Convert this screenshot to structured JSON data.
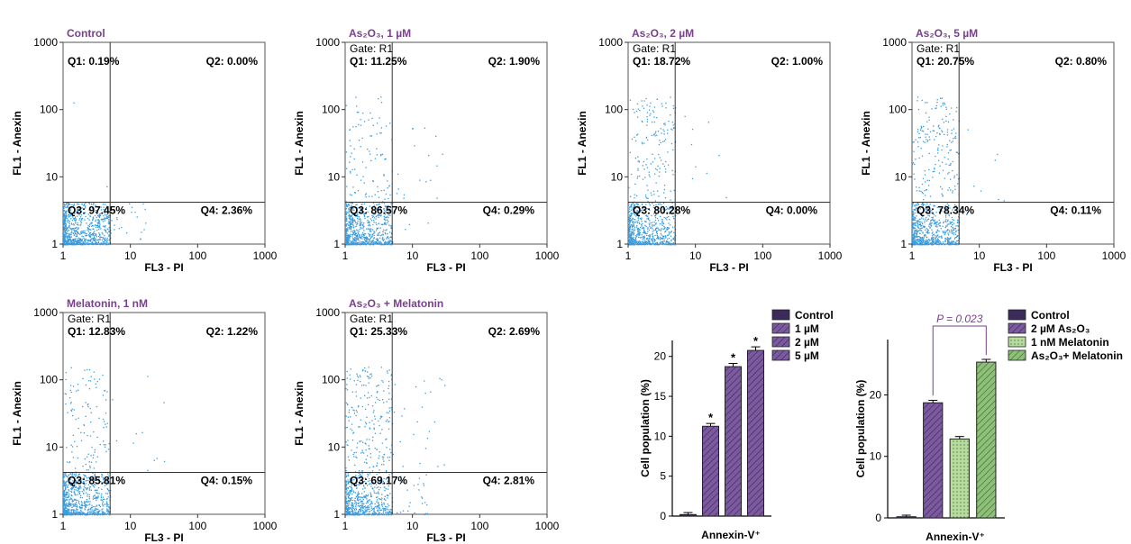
{
  "colors": {
    "title": "#7a3f8e",
    "dots": "#3a9bdc",
    "control_bar": "#3b2b5a",
    "arsenic_bar": "#7b5a9e",
    "melatonin_bar": "#b8dca0",
    "combo_bar": "#8fc07a"
  },
  "flow_axes": {
    "xlabel": "FL3 - PI",
    "ylabel": "FL1 - Anexin",
    "x_ticks": [
      "1",
      "10",
      "100",
      "1000"
    ],
    "y_ticks": [
      "1000",
      "100",
      "10",
      "1"
    ],
    "gate_x": 5,
    "gate_y": 4.2
  },
  "flow_plots": [
    {
      "title": "Control",
      "gate": "",
      "q1": "Q1: 0.19%",
      "q2": "Q2: 0.00%",
      "q3": "Q3: 97.45%",
      "q4": "Q4: 2.36%",
      "density": [
        0.0019,
        0.0,
        0.9745,
        0.0236
      ]
    },
    {
      "title": "As₂O₃, 1 µM",
      "gate": "Gate: R1",
      "q1": "Q1: 11.25%",
      "q2": "Q2: 1.90%",
      "q3": "Q3: 86.57%",
      "q4": "Q4: 0.29%",
      "density": [
        0.1125,
        0.019,
        0.8657,
        0.0029
      ]
    },
    {
      "title": "As₂O₃, 2 µM",
      "gate": "Gate: R1",
      "q1": "Q1: 18.72%",
      "q2": "Q2: 1.00%",
      "q3": "Q3: 80.28%",
      "q4": "Q4: 0.00%",
      "density": [
        0.1872,
        0.01,
        0.8028,
        0.0
      ]
    },
    {
      "title": "As₂O₃, 5 µM",
      "gate": "Gate: R1",
      "q1": "Q1: 20.75%",
      "q2": "Q2: 0.80%",
      "q3": "Q3: 78.34%",
      "q4": "Q4: 0.11%",
      "density": [
        0.2075,
        0.008,
        0.7834,
        0.0011
      ]
    },
    {
      "title": "Melatonin, 1 nM",
      "gate": "Gate: R1",
      "q1": "Q1: 12.83%",
      "q2": "Q2: 1.22%",
      "q3": "Q3: 85.81%",
      "q4": "Q4: 0.15%",
      "density": [
        0.1283,
        0.0122,
        0.8581,
        0.0015
      ]
    },
    {
      "title": "As₂O₃ + Melatonin",
      "gate": "Gate: R1",
      "q1": "Q1: 25.33%",
      "q2": "Q2: 2.69%",
      "q3": "Q3: 69.17%",
      "q4": "Q4: 2.81%",
      "density": [
        0.2533,
        0.0269,
        0.6917,
        0.0281
      ]
    }
  ],
  "chart_data": [
    {
      "type": "bar",
      "xlabel": "Annexin-V⁺",
      "ylabel": "Cell population (%)",
      "ylim": [
        0,
        22
      ],
      "y_ticks": [
        0,
        5,
        10,
        15,
        20
      ],
      "grid": false,
      "legend_position": "top-right",
      "categories": [
        "Control",
        "1 µM",
        "2 µM",
        "5 µM"
      ],
      "values": [
        0.19,
        11.25,
        18.72,
        20.75
      ],
      "errors": [
        0.25,
        0.35,
        0.4,
        0.45
      ],
      "significance": [
        "",
        "*",
        "*",
        "*"
      ]
    },
    {
      "type": "bar",
      "xlabel": "Annexin-V⁺",
      "ylabel": "Cell population (%)",
      "ylim": [
        0,
        29
      ],
      "y_ticks": [
        0,
        10,
        20
      ],
      "grid": false,
      "legend_position": "top-right",
      "categories": [
        "Control",
        "2 µM As₂O₃",
        "1 nM Melatonin",
        "As₂O₃+ Melatonin"
      ],
      "values": [
        0.19,
        18.72,
        12.83,
        25.33
      ],
      "errors": [
        0.25,
        0.4,
        0.4,
        0.45
      ],
      "annotation": "P = 0.023"
    }
  ]
}
